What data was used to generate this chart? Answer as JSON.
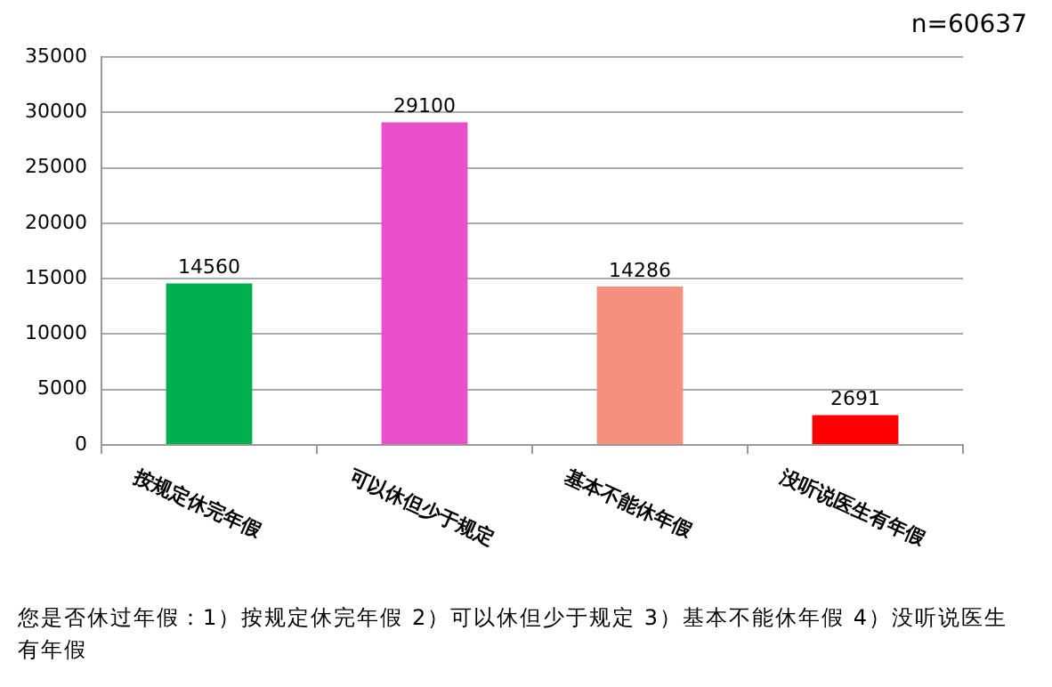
{
  "chart_data": {
    "type": "bar",
    "subtitle": "n=60637",
    "categories": [
      "按规定休完年假",
      "可以休但少于规定",
      "基本不能休年假",
      "没听说医生有年假"
    ],
    "values": [
      14560,
      29100,
      14286,
      2691
    ],
    "colors": [
      "#00b050",
      "#e84fc9",
      "#f4907d",
      "#ff0000"
    ],
    "ylim": [
      0,
      35000
    ],
    "yticks": [
      0,
      5000,
      10000,
      15000,
      20000,
      25000,
      30000,
      35000
    ],
    "grid": "y",
    "legend": false,
    "data_labels": true,
    "annotations": [
      "您是否休过年假：1）按规定休完年假 2）可以休但少于规定 3）基本不能休年假 4）没听说医生有年假"
    ]
  }
}
